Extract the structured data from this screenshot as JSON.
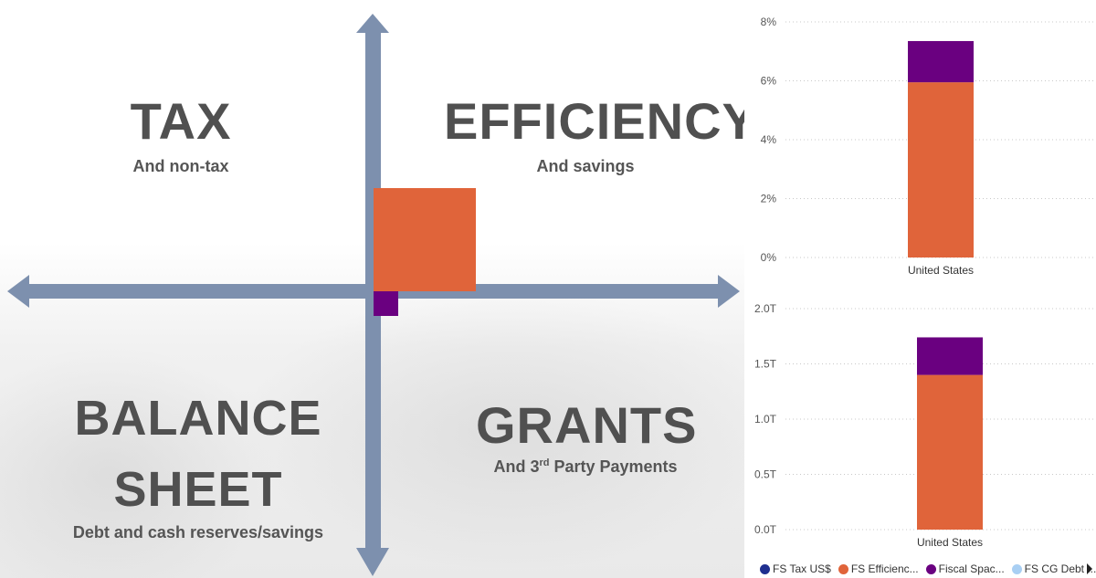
{
  "quadrants": {
    "tax": {
      "title": "TAX",
      "subtitle": "And non-tax"
    },
    "efficiency": {
      "title": "EFFICIENCY",
      "subtitle": "And savings"
    },
    "balance": {
      "title_line1": "BALANCE",
      "title_line2": "SHEET",
      "subtitle": "Debt and cash reserves/savings"
    },
    "grants": {
      "title": "GRANTS",
      "subtitle_pre": "And 3",
      "subtitle_sup": "rd",
      "subtitle_post": " Party Payments"
    }
  },
  "quadrant_markers": {
    "efficiency_color": "#e0643a",
    "fiscal_space_color": "#6a0080",
    "arrow_color": "#7d90ae"
  },
  "colors": {
    "tax": "#1f2f8f",
    "efficiency": "#e0643a",
    "fiscal_space": "#6a0080",
    "cg_debt": "#a9cff3",
    "grid": "#c8c8c8"
  },
  "legend": [
    {
      "label": "FS Tax US$",
      "color": "#1f2f8f"
    },
    {
      "label": "FS Efficienc...",
      "color": "#e0643a"
    },
    {
      "label": "Fiscal Spac...",
      "color": "#6a0080"
    },
    {
      "label": "FS CG Debt ...",
      "color": "#a9cff3"
    }
  ],
  "chart_data": [
    {
      "type": "bar",
      "stacked": true,
      "categories": [
        "United States"
      ],
      "series": [
        {
          "name": "FS Efficienc...",
          "values": [
            5.95
          ],
          "color": "#e0643a"
        },
        {
          "name": "Fiscal Spac...",
          "values": [
            1.4
          ],
          "color": "#6a0080"
        }
      ],
      "ylim": [
        0,
        8
      ],
      "yticks": [
        "0%",
        "2%",
        "4%",
        "6%",
        "8%"
      ],
      "ytick_values": [
        0,
        2,
        4,
        6,
        8
      ],
      "grid": true
    },
    {
      "type": "bar",
      "stacked": true,
      "categories": [
        "United States"
      ],
      "series": [
        {
          "name": "FS Efficienc...",
          "values": [
            1.4
          ],
          "color": "#e0643a"
        },
        {
          "name": "Fiscal Spac...",
          "values": [
            0.34
          ],
          "color": "#6a0080"
        }
      ],
      "ylim": [
        0,
        2
      ],
      "yticks": [
        "0.0T",
        "0.5T",
        "1.0T",
        "1.5T",
        "2.0T"
      ],
      "ytick_values": [
        0,
        0.5,
        1,
        1.5,
        2
      ],
      "grid": true
    }
  ]
}
